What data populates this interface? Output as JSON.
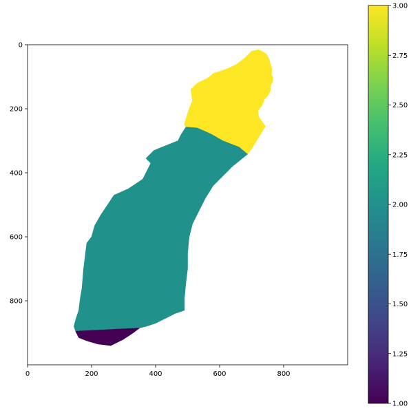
{
  "chart_data": {
    "type": "image",
    "xlim": [
      0,
      1000
    ],
    "ylim": [
      1000,
      0
    ],
    "x_ticks": [
      0,
      200,
      400,
      600,
      800
    ],
    "y_ticks": [
      0,
      200,
      400,
      600,
      800
    ],
    "image_regions": [
      {
        "value": 3,
        "color": "#fde725",
        "outline": [
          [
            722,
            15
          ],
          [
            745,
            28
          ],
          [
            755,
            45
          ],
          [
            757,
            55
          ],
          [
            760,
            65
          ],
          [
            763,
            75
          ],
          [
            762,
            95
          ],
          [
            766,
            100
          ],
          [
            766,
            115
          ],
          [
            760,
            125
          ],
          [
            758,
            145
          ],
          [
            750,
            160
          ],
          [
            740,
            170
          ],
          [
            732,
            190
          ],
          [
            720,
            205
          ],
          [
            722,
            225
          ],
          [
            743,
            255
          ],
          [
            700,
            325
          ],
          [
            687,
            342
          ],
          [
            661,
            320
          ],
          [
            610,
            300
          ],
          [
            575,
            280
          ],
          [
            530,
            260
          ],
          [
            495,
            257
          ],
          [
            490,
            250
          ],
          [
            495,
            230
          ],
          [
            505,
            200
          ],
          [
            515,
            175
          ],
          [
            510,
            140
          ],
          [
            530,
            120
          ],
          [
            562,
            105
          ],
          [
            580,
            90
          ],
          [
            610,
            80
          ],
          [
            635,
            70
          ],
          [
            655,
            60
          ],
          [
            680,
            40
          ],
          [
            700,
            20
          ]
        ]
      },
      {
        "value": 2,
        "color": "#21918c",
        "outline": [
          [
            495,
            257
          ],
          [
            530,
            260
          ],
          [
            575,
            280
          ],
          [
            610,
            300
          ],
          [
            661,
            320
          ],
          [
            687,
            342
          ],
          [
            640,
            380
          ],
          [
            580,
            440
          ],
          [
            555,
            480
          ],
          [
            535,
            520
          ],
          [
            515,
            560
          ],
          [
            505,
            600
          ],
          [
            500,
            650
          ],
          [
            500,
            700
          ],
          [
            495,
            740
          ],
          [
            490,
            790
          ],
          [
            490,
            830
          ],
          [
            460,
            840
          ],
          [
            440,
            850
          ],
          [
            400,
            870
          ],
          [
            370,
            880
          ],
          [
            350,
            885
          ],
          [
            150,
            895
          ],
          [
            145,
            880
          ],
          [
            150,
            860
          ],
          [
            160,
            830
          ],
          [
            165,
            790
          ],
          [
            170,
            760
          ],
          [
            175,
            700
          ],
          [
            180,
            660
          ],
          [
            185,
            620
          ],
          [
            200,
            600
          ],
          [
            210,
            565
          ],
          [
            230,
            530
          ],
          [
            250,
            500
          ],
          [
            270,
            470
          ],
          [
            315,
            450
          ],
          [
            360,
            420
          ],
          [
            380,
            380
          ],
          [
            385,
            370
          ],
          [
            370,
            355
          ],
          [
            395,
            330
          ],
          [
            420,
            320
          ],
          [
            470,
            300
          ],
          [
            480,
            280
          ]
        ]
      },
      {
        "value": 1,
        "color": "#440154",
        "outline": [
          [
            150,
            895
          ],
          [
            350,
            885
          ],
          [
            330,
            900
          ],
          [
            300,
            920
          ],
          [
            260,
            940
          ],
          [
            220,
            935
          ],
          [
            185,
            925
          ],
          [
            160,
            915
          ]
        ]
      }
    ],
    "colorbar": {
      "cmap": "viridis",
      "range": [
        1.0,
        3.0
      ],
      "ticks": [
        1.0,
        1.25,
        1.5,
        1.75,
        2.0,
        2.25,
        2.5,
        2.75,
        3.0
      ],
      "tick_labels": [
        "1.00",
        "1.25",
        "1.50",
        "1.75",
        "2.00",
        "2.25",
        "2.50",
        "2.75",
        "3.00"
      ]
    },
    "grid": false,
    "title": "",
    "xlabel": "",
    "ylabel": ""
  },
  "colors": {
    "viridis_stops": [
      "#440154",
      "#482475",
      "#414487",
      "#355f8d",
      "#2a788e",
      "#21918c",
      "#22a884",
      "#44bf70",
      "#7ad151",
      "#bddf26",
      "#fde725"
    ]
  }
}
